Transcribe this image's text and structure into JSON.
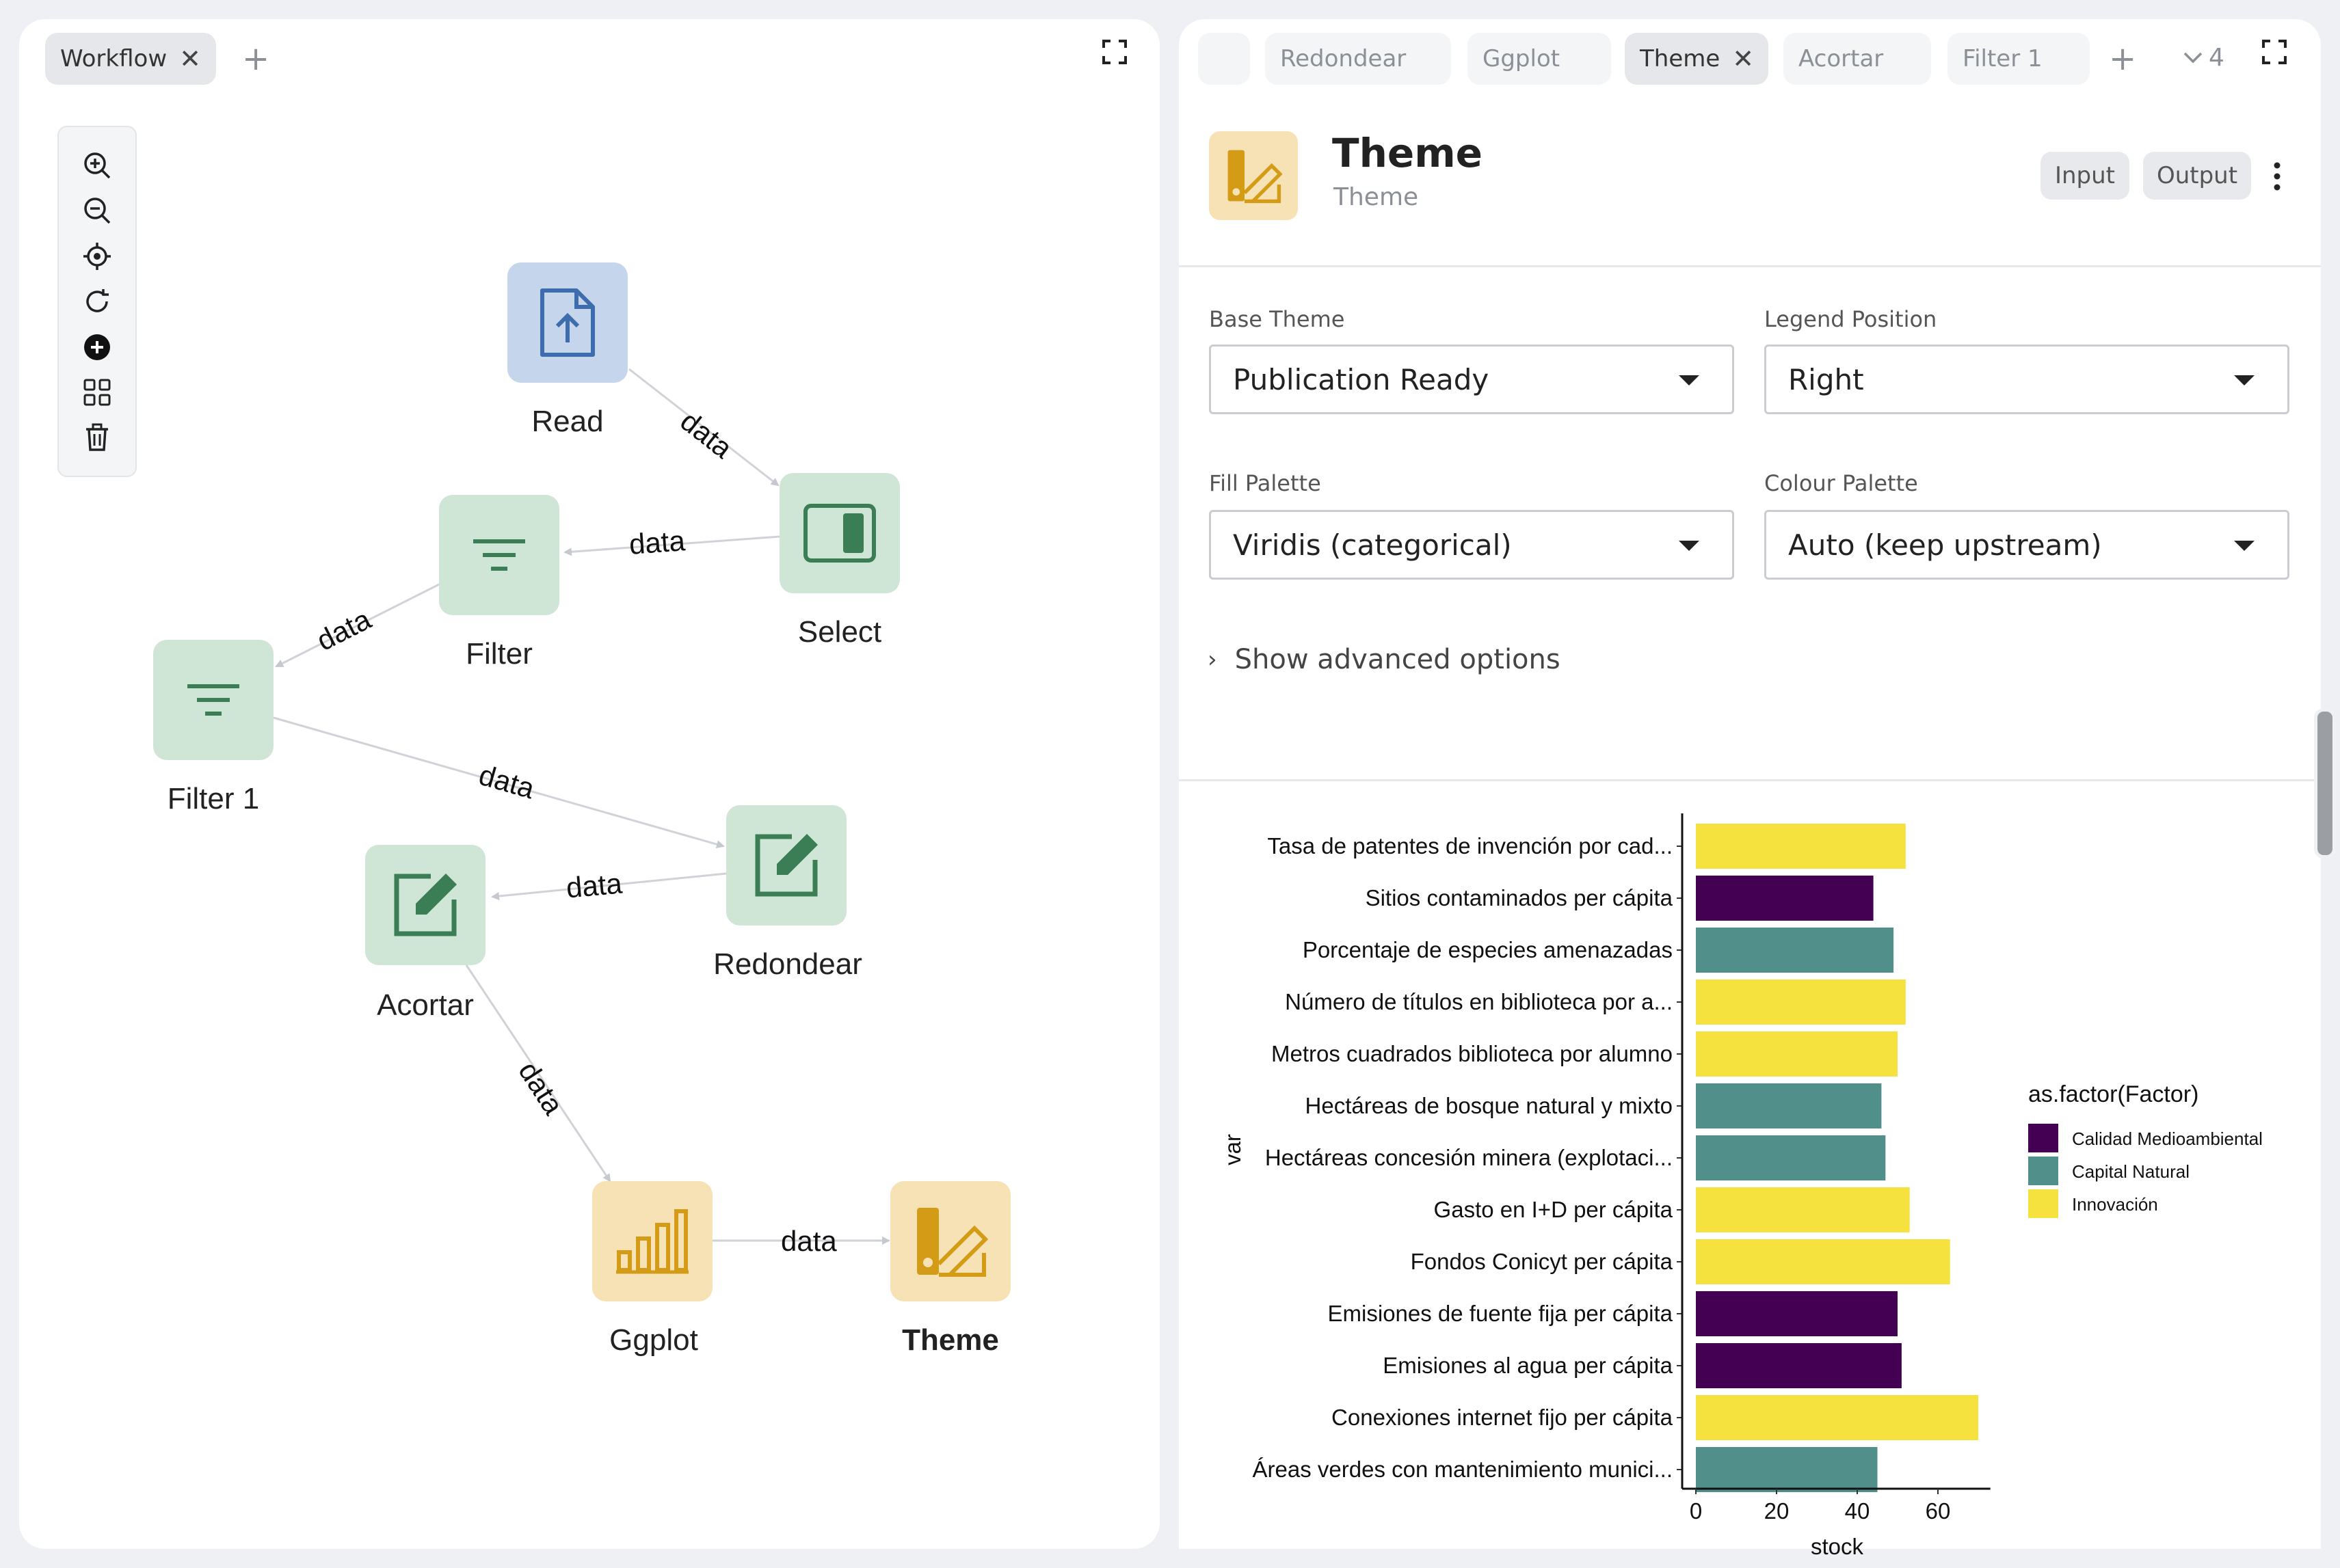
{
  "left_panel": {
    "tabs": [
      {
        "label": "Workflow"
      }
    ],
    "toolbar": [
      "zoom-in-icon",
      "zoom-out-icon",
      "locate-icon",
      "refresh-icon",
      "add-circle-icon",
      "grid-icon",
      "trash-icon"
    ],
    "nodes": {
      "read": "Read",
      "select": "Select",
      "filter": "Filter",
      "filter1": "Filter 1",
      "redondear": "Redondear",
      "acortar": "Acortar",
      "ggplot": "Ggplot",
      "theme": "Theme"
    },
    "edge_label": "data"
  },
  "right_panel": {
    "tabs": [
      "Redondear",
      "Ggplot",
      "Theme",
      "Acortar",
      "Filter 1"
    ],
    "active_tab": "Theme",
    "overflow_count": "4",
    "node_title": "Theme",
    "node_subtitle": "Theme",
    "input_button": "Input",
    "output_button": "Output",
    "fields": {
      "base_theme": {
        "label": "Base Theme",
        "value": "Publication Ready"
      },
      "legend_position": {
        "label": "Legend Position",
        "value": "Right"
      },
      "fill_palette": {
        "label": "Fill Palette",
        "value": "Viridis (categorical)"
      },
      "colour_palette": {
        "label": "Colour Palette",
        "value": "Auto (keep upstream)"
      }
    },
    "advanced_label": "Show advanced options"
  },
  "chart_data": {
    "type": "bar",
    "orientation": "horizontal",
    "categories": [
      "Tasa de patentes de invención por cad...",
      "Sitios contaminados per cápita",
      "Porcentaje de especies amenazadas",
      "Número de títulos en biblioteca por a...",
      "Metros cuadrados biblioteca por alumno",
      "Hectáreas de bosque natural y mixto",
      "Hectáreas concesión minera (explotaci...",
      "Gasto en I+D per cápita",
      "Fondos Conicyt per cápita",
      "Emisiones de fuente fija per cápita",
      "Emisiones al agua per cápita",
      "Conexiones internet fijo per cápita",
      "Áreas verdes con mantenimiento munici..."
    ],
    "values": [
      52,
      44,
      49,
      52,
      50,
      46,
      47,
      53,
      63,
      50,
      51,
      70,
      45
    ],
    "groups": [
      "Innovación",
      "Calidad Medioambiental",
      "Capital Natural",
      "Innovación",
      "Innovación",
      "Capital Natural",
      "Capital Natural",
      "Innovación",
      "Innovación",
      "Calidad Medioambiental",
      "Calidad Medioambiental",
      "Innovación",
      "Capital Natural"
    ],
    "xlabel": "stock",
    "ylabel": "var",
    "xlim": [
      0,
      73
    ],
    "xticks": [
      0,
      20,
      40,
      60
    ],
    "legend": {
      "title": "as.factor(Factor)",
      "position": "right",
      "entries": [
        {
          "name": "Calidad Medioambiental",
          "color": "#440154"
        },
        {
          "name": "Capital Natural",
          "color": "#518f8b"
        },
        {
          "name": "Innovación",
          "color": "#f5e23f"
        }
      ]
    }
  }
}
